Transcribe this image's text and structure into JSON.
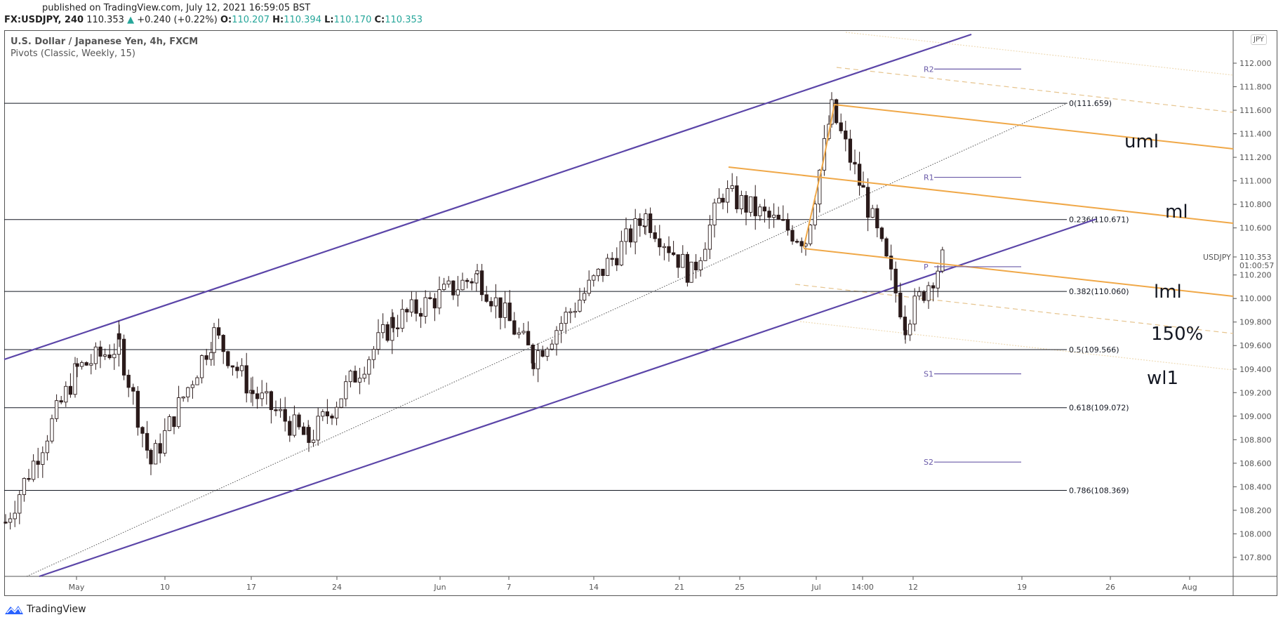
{
  "header": {
    "published": "published on TradingView.com, July 12, 2021 16:59:05 BST",
    "symbol": "FX:USDJPY, 240",
    "last": "110.353",
    "change": "+0.240 (+0.22%)",
    "open_label": "O:",
    "open": "110.207",
    "high_label": "H:",
    "high": "110.394",
    "low_label": "L:",
    "low": "110.170",
    "close_label": "C:",
    "close": "110.353"
  },
  "legend": {
    "title": "U.S. Dollar / Japanese Yen, 4h, FXCM",
    "indicator": "Pivots (Classic, Weekly, 15)"
  },
  "price_axis": {
    "currency": "JPY",
    "symbol_tag": "USDJPY",
    "current_price": "110.353",
    "countdown": "01:00:57"
  },
  "footer": {
    "brand": "TradingView"
  },
  "colors": {
    "channel": "#5b45a8",
    "pitchfork": "#f0a848",
    "pitchfork_faint": "#e8d2a8",
    "fib": "#131722",
    "pivot": "#6a5aa8",
    "bull_body": "#ffffff",
    "bear_body": "#2a1a1a"
  },
  "chart_data": {
    "type": "candlestick",
    "title": "U.S. Dollar / Japanese Yen, 4h, FXCM",
    "xlabel": "",
    "ylabel": "",
    "ylim": [
      107.65,
      112.3
    ],
    "y_ticks": [
      "112.000",
      "111.800",
      "111.600",
      "111.400",
      "111.200",
      "111.000",
      "110.800",
      "110.600",
      "110.400",
      "110.200",
      "110.000",
      "109.800",
      "109.600",
      "109.400",
      "109.200",
      "109.000",
      "108.800",
      "108.600",
      "108.400",
      "108.200",
      "108.000",
      "107.800"
    ],
    "x_ticks": [
      "May",
      "10",
      "17",
      "24",
      "Jun",
      "7",
      "14",
      "21",
      "25",
      "Jul",
      "14:00",
      "12",
      "19",
      "26",
      "Aug"
    ],
    "fib_levels": [
      {
        "label": "0(111.659)",
        "value": 111.659
      },
      {
        "label": "0.236(110.671)",
        "value": 110.671
      },
      {
        "label": "0.382(110.060)",
        "value": 110.06
      },
      {
        "label": "0.5(109.566)",
        "value": 109.566
      },
      {
        "label": "0.618(109.072)",
        "value": 109.072
      },
      {
        "label": "0.786(108.369)",
        "value": 108.369
      }
    ],
    "pivots": [
      {
        "label": "R2",
        "value": 111.95
      },
      {
        "label": "R1",
        "value": 111.03
      },
      {
        "label": "P",
        "value": 110.27
      },
      {
        "label": "S1",
        "value": 109.36
      },
      {
        "label": "S2",
        "value": 108.61
      }
    ],
    "annotations": [
      "uml",
      "ml",
      "lml",
      "150%",
      "wl1"
    ],
    "approx_close_path": [
      {
        "date": "Apr 27",
        "close": 108.1
      },
      {
        "date": "Apr 30",
        "close": 109.4
      },
      {
        "date": "May 3",
        "close": 109.6
      },
      {
        "date": "May 7",
        "close": 108.6
      },
      {
        "date": "May 13",
        "close": 109.7
      },
      {
        "date": "May 18",
        "close": 109.2
      },
      {
        "date": "May 25",
        "close": 108.8
      },
      {
        "date": "May 28",
        "close": 109.8
      },
      {
        "date": "Jun 4",
        "close": 110.2
      },
      {
        "date": "Jun 9",
        "close": 109.5
      },
      {
        "date": "Jun 17",
        "close": 110.7
      },
      {
        "date": "Jun 21",
        "close": 110.2
      },
      {
        "date": "Jun 24",
        "close": 110.9
      },
      {
        "date": "Jun 29",
        "close": 110.5
      },
      {
        "date": "Jul 2",
        "close": 111.6
      },
      {
        "date": "Jul 6",
        "close": 110.9
      },
      {
        "date": "Jul 9",
        "close": 109.8
      },
      {
        "date": "Jul 12",
        "close": 110.353
      }
    ]
  }
}
